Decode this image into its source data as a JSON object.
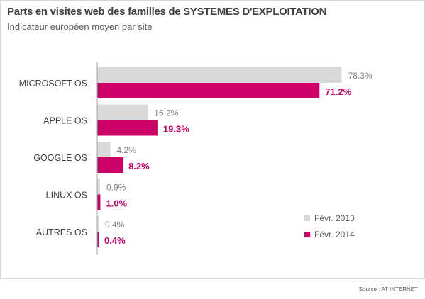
{
  "chart_data": {
    "type": "bar",
    "orientation": "horizontal",
    "title": "Parts en visites web des familles de SYSTEMES D'EXPLOITATION",
    "subtitle": "Indicateur européen moyen par site",
    "categories": [
      "MICROSOFT OS",
      "APPLE OS",
      "GOOGLE OS",
      "LINUX OS",
      "AUTRES OS"
    ],
    "series": [
      {
        "name": "Févr. 2013",
        "color": "#d9d9d9",
        "values": [
          78.3,
          16.2,
          4.2,
          0.9,
          0.4
        ],
        "labels": [
          "78.3%",
          "16.2%",
          "4.2%",
          "0.9%",
          "0.4%"
        ]
      },
      {
        "name": "Févr. 2014",
        "color": "#cc0066",
        "values": [
          71.2,
          19.3,
          8.2,
          1.0,
          0.4
        ],
        "labels": [
          "71.2%",
          "19.3%",
          "8.2%",
          "1.0%",
          "0.4%"
        ]
      }
    ],
    "xlim": [
      0,
      100
    ],
    "grid": false,
    "legend": "bottom-right"
  },
  "source": "Source : AT INTERNET",
  "colors": {
    "axis": "#a6a6a6",
    "category_text": "#404040",
    "label_2013": "#7f7f7f",
    "label_2014": "#cc0066"
  }
}
